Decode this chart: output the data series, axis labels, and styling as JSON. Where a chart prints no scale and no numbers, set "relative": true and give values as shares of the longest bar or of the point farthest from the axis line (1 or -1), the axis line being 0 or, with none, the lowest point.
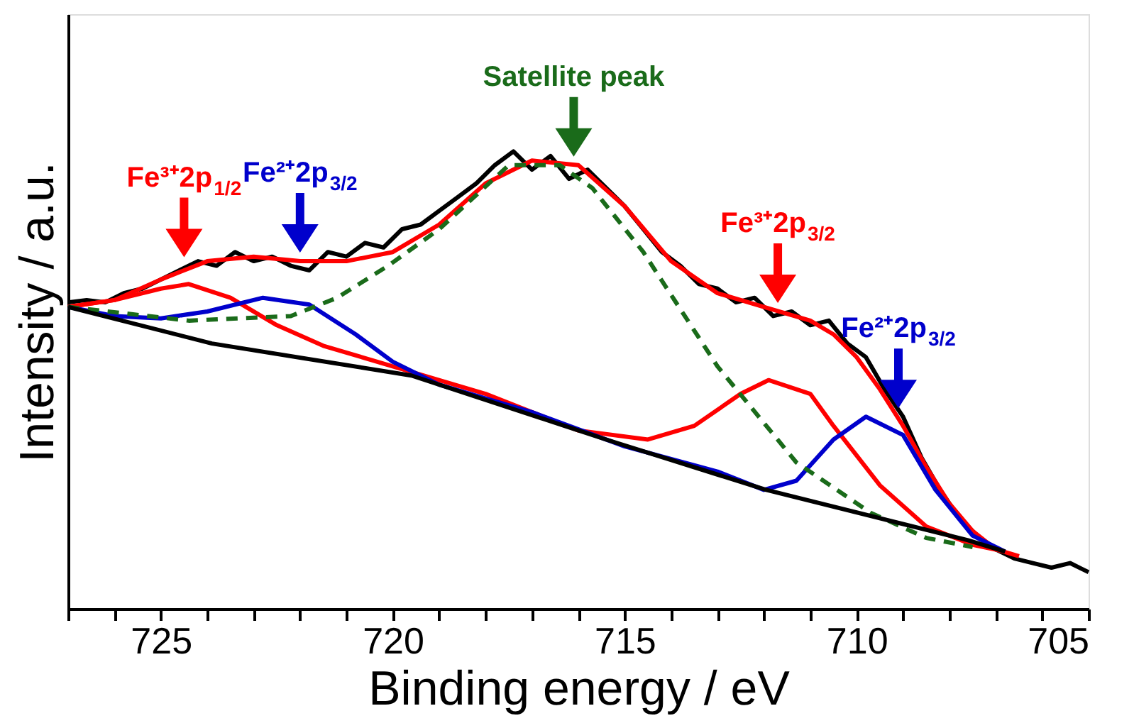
{
  "chart_data": {
    "type": "line",
    "relative": true,
    "xlabel": "Binding energy / eV",
    "ylabel": "Intensity / a.u.",
    "xlim": [
      727,
      705
    ],
    "xticks": [
      {
        "value": 727,
        "label": null
      },
      {
        "value": 726,
        "label": null
      },
      725,
      {
        "value": 724,
        "label": null
      },
      {
        "value": 723,
        "label": null
      },
      {
        "value": 722,
        "label": null
      },
      {
        "value": 721,
        "label": null
      },
      720,
      {
        "value": 719,
        "label": null
      },
      {
        "value": 718,
        "label": null
      },
      {
        "value": 717,
        "label": null
      },
      {
        "value": 716,
        "label": null
      },
      715,
      {
        "value": 714,
        "label": null
      },
      {
        "value": 713,
        "label": null
      },
      {
        "value": 712,
        "label": null
      },
      {
        "value": 711,
        "label": null
      },
      710,
      {
        "value": 709,
        "label": null
      },
      {
        "value": 708,
        "label": null
      },
      {
        "value": 707,
        "label": null
      },
      {
        "value": 706,
        "label": null
      },
      705
    ],
    "tick_labels": "x",
    "grid": false,
    "marker": "none",
    "series": [
      {
        "color": "#000000",
        "x": [
          727,
          726.6,
          726.2,
          725.8,
          725.4,
          725.0,
          724.6,
          724.2,
          723.8,
          723.4,
          723.0,
          722.6,
          722.2,
          721.8,
          721.4,
          721.0,
          720.6,
          720.2,
          719.8,
          719.4,
          719.0,
          718.6,
          718.2,
          717.8,
          717.4,
          717.0,
          716.6,
          716.2,
          715.8,
          715.4,
          715.0,
          714.6,
          714.2,
          713.8,
          713.4,
          713.0,
          712.6,
          712.2,
          711.8,
          711.4,
          711.0,
          710.6,
          710.2,
          709.8,
          709.4,
          709.0,
          708.6,
          708.2,
          707.8,
          707.4,
          707.0,
          706.6,
          706.2,
          705.8,
          705.4,
          705.0
        ],
        "values": [
          0.67,
          0.675,
          0.67,
          0.69,
          0.7,
          0.72,
          0.74,
          0.76,
          0.75,
          0.78,
          0.76,
          0.77,
          0.75,
          0.74,
          0.78,
          0.77,
          0.8,
          0.79,
          0.83,
          0.84,
          0.87,
          0.9,
          0.93,
          0.97,
          1.0,
          0.96,
          0.99,
          0.94,
          0.96,
          0.92,
          0.88,
          0.83,
          0.78,
          0.75,
          0.71,
          0.7,
          0.67,
          0.68,
          0.64,
          0.65,
          0.62,
          0.63,
          0.58,
          0.55,
          0.48,
          0.42,
          0.33,
          0.26,
          0.2,
          0.16,
          0.13,
          0.11,
          0.1,
          0.09,
          0.1,
          0.08
        ]
      },
      {
        "color": "#ff0000",
        "x": [
          727,
          726,
          725,
          724,
          723,
          722,
          721,
          720,
          719,
          718,
          717,
          716,
          715,
          714,
          713,
          712,
          711,
          710.5,
          710,
          709.5,
          709,
          708.5,
          708,
          707.5,
          707,
          706.5
        ],
        "values": [
          0.66,
          0.675,
          0.72,
          0.76,
          0.77,
          0.76,
          0.76,
          0.78,
          0.84,
          0.93,
          0.98,
          0.97,
          0.88,
          0.76,
          0.69,
          0.66,
          0.63,
          0.6,
          0.55,
          0.48,
          0.4,
          0.31,
          0.23,
          0.17,
          0.13,
          0.115
        ]
      },
      {
        "color": "#ff0000",
        "x": [
          727,
          726,
          725,
          724.4,
          723.5,
          722.5,
          721.5,
          720,
          718,
          716,
          714.5,
          713.5,
          712.5,
          711.9,
          711,
          710.5,
          709.5,
          708.5,
          707.5,
          706.8
        ],
        "values": [
          0.66,
          0.675,
          0.7,
          0.71,
          0.68,
          0.62,
          0.575,
          0.53,
          0.47,
          0.39,
          0.37,
          0.4,
          0.47,
          0.5,
          0.47,
          0.4,
          0.27,
          0.18,
          0.14,
          0.125
        ]
      },
      {
        "color": "#0000cc",
        "x": [
          727,
          726,
          725,
          724,
          722.8,
          721.8,
          720.8,
          720,
          719,
          717,
          715,
          713,
          712,
          711.3,
          710.5,
          709.8,
          709,
          708.3,
          707.5,
          706.8
        ],
        "values": [
          0.66,
          0.64,
          0.635,
          0.65,
          0.68,
          0.665,
          0.6,
          0.54,
          0.49,
          0.43,
          0.355,
          0.3,
          0.26,
          0.28,
          0.37,
          0.42,
          0.38,
          0.26,
          0.16,
          0.125
        ]
      },
      {
        "color": "#1a6b1a",
        "line_style": "dashed",
        "x": [
          727,
          724.4,
          722.2,
          721.2,
          720.1,
          719.0,
          717.5,
          716.4,
          715.7,
          714.6,
          713.0,
          711.3,
          709.7,
          708.5,
          707.5
        ],
        "values": [
          0.66,
          0.63,
          0.64,
          0.68,
          0.75,
          0.83,
          0.97,
          0.97,
          0.92,
          0.78,
          0.53,
          0.32,
          0.21,
          0.155,
          0.135
        ]
      },
      {
        "color": "#000000",
        "x": [
          727,
          723.9,
          719.6,
          716.3,
          715.4,
          711.95,
          707.6,
          706.8
        ],
        "values": [
          0.66,
          0.58,
          0.51,
          0.4,
          0.37,
          0.26,
          0.15,
          0.125
        ]
      }
    ],
    "annotations": [
      {
        "text": "Fe³⁺2p$_{1/2}$",
        "x": 724.5,
        "y": 0.75
      },
      {
        "text": "Fe²⁺2p$_{3/2}$",
        "x": 722,
        "y": 0.76
      },
      {
        "text": "Satellite peak",
        "x": 716.1,
        "y": 0.97
      },
      {
        "text": "Fe³⁺2p$_{3/2}$",
        "x": 711.7,
        "y": 0.65
      },
      {
        "text": "Fe²⁺2p$_{3/2}$",
        "x": 709.1,
        "y": 0.42
      }
    ]
  }
}
